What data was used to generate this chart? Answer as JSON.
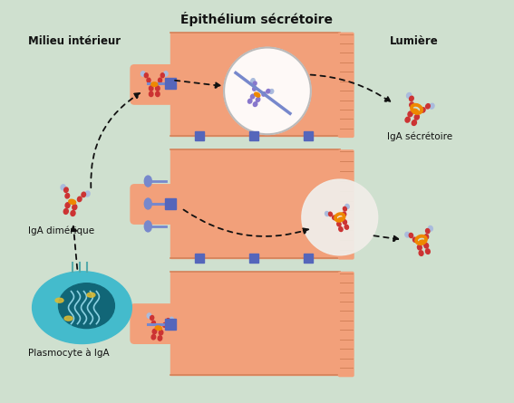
{
  "background_color": "#cfe0cf",
  "title": "Épithélium sécrétoire",
  "label_milieu": "Milieu intérieur",
  "label_lumiere": "Lumière",
  "label_iga_dimerique": "IgA dimérique",
  "label_iga_secretoire": "IgA sécrétoire",
  "label_plasmocyte": "Plasmocyte à IgA",
  "epithelium_color": "#f2a07a",
  "cell_outline_color": "#d4825a",
  "receptor_color": "#7788cc",
  "iga_heavy_color": "#cc3333",
  "iga_light_color": "#aabbdd",
  "iga_jchain_color": "#ee8800",
  "arrow_color": "#111111",
  "plasmocyte_outer_color": "#44bbcc",
  "plasmocyte_inner_color": "#116677",
  "blue_sq_color": "#5566bb",
  "title_fontsize": 10,
  "label_fontsize": 8.5
}
